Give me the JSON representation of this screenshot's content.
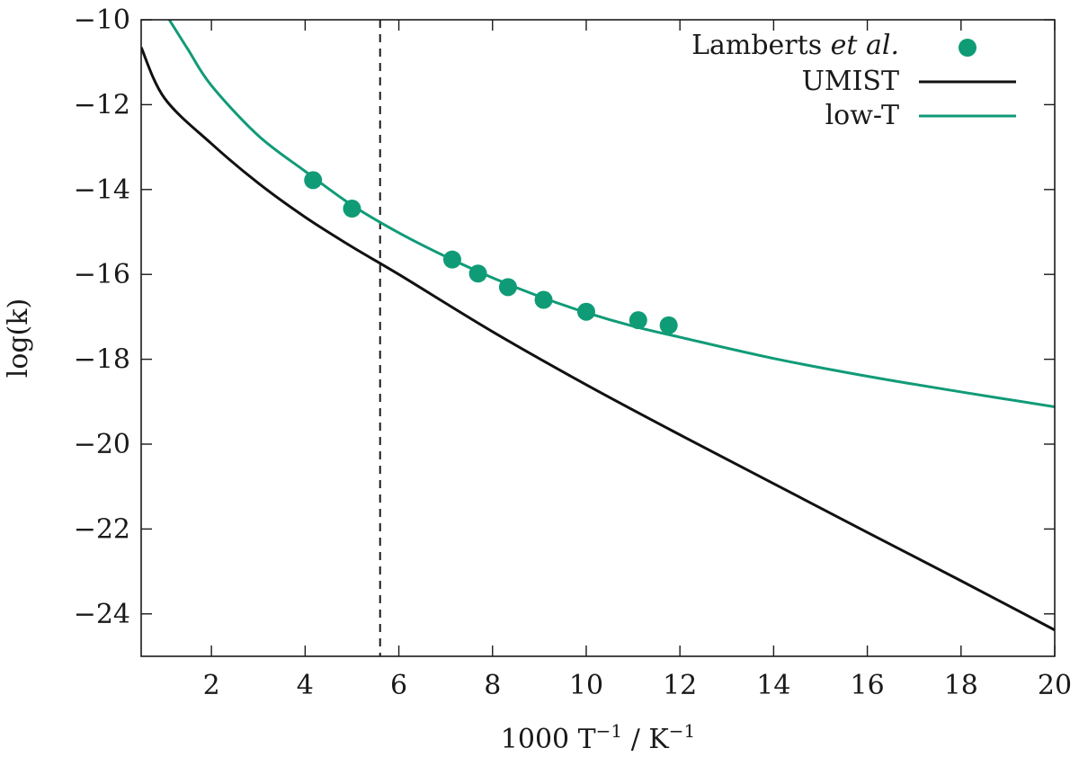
{
  "chart_data": {
    "type": "line",
    "title": "",
    "xlabel": "1000 T⁻¹ / K⁻¹",
    "ylabel": "log(k)",
    "xlim": [
      0.5,
      20
    ],
    "ylim": [
      -25,
      -10
    ],
    "xticks": [
      2,
      4,
      6,
      8,
      10,
      12,
      14,
      16,
      18,
      20
    ],
    "yticks": [
      -10,
      -12,
      -14,
      -16,
      -18,
      -20,
      -22,
      -24
    ],
    "xtick_labels": [
      "2",
      "4",
      "6",
      "8",
      "10",
      "12",
      "14",
      "16",
      "18",
      "20"
    ],
    "ytick_labels": [
      "−10",
      "−12",
      "−14",
      "−16",
      "−18",
      "−20",
      "−22",
      "−24"
    ],
    "vertical_marker": {
      "x": 5.6,
      "style": "dashed"
    },
    "legend_position": "top-right",
    "series": [
      {
        "name": "Lamberts et al.",
        "kind": "scatter",
        "color": "#109b77",
        "x": [
          4.17,
          5.0,
          7.14,
          7.69,
          8.33,
          9.09,
          10.0,
          11.11,
          11.76
        ],
        "y": [
          -13.78,
          -14.45,
          -15.65,
          -15.98,
          -16.3,
          -16.6,
          -16.88,
          -17.08,
          -17.2
        ]
      },
      {
        "name": "UMIST",
        "kind": "line",
        "color": "#111111",
        "x": [
          0.5,
          1,
          2,
          3,
          4,
          5,
          6,
          8,
          10,
          12,
          14,
          16,
          18,
          20
        ],
        "y": [
          -10.65,
          -11.85,
          -12.92,
          -13.85,
          -14.65,
          -15.35,
          -16.0,
          -17.35,
          -18.6,
          -19.78,
          -20.93,
          -22.08,
          -23.22,
          -24.38
        ]
      },
      {
        "name": "low-T",
        "kind": "line",
        "color": "#109b77",
        "x": [
          1.1,
          1.5,
          2,
          3,
          4,
          5,
          6,
          7,
          8,
          9,
          10,
          11,
          12,
          14,
          16,
          18,
          20
        ],
        "y": [
          -10.0,
          -10.7,
          -11.55,
          -12.73,
          -13.57,
          -14.37,
          -15.02,
          -15.58,
          -16.08,
          -16.52,
          -16.9,
          -17.22,
          -17.48,
          -17.98,
          -18.4,
          -18.77,
          -19.12
        ]
      }
    ]
  },
  "legend": {
    "lamberts_main": "Lamberts ",
    "lamberts_italic": "et al.",
    "umist": "UMIST",
    "lowt": "low-T"
  },
  "axis_text": {
    "x_prefix": "1000 T",
    "x_exp1": "−1",
    "x_mid": "  /  K",
    "x_exp2": "−1",
    "y_text": "log(k)"
  }
}
